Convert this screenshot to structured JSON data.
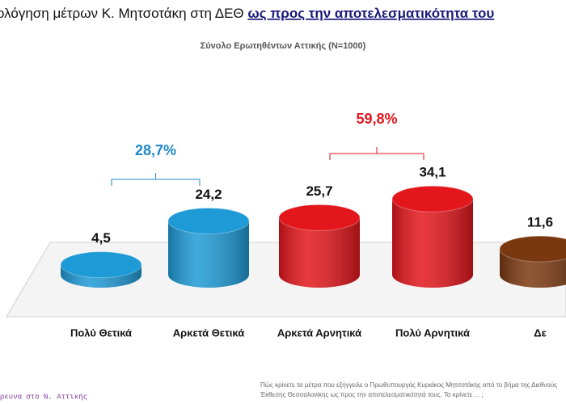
{
  "chart_data": {
    "type": "bar3d",
    "title": [
      "ολόγηση μέτρων Κ. Μητσοτάκη στη ΔΕΘ ",
      "ως προς την αποτελεσματικότητα του"
    ],
    "subtitle": "Σύνολο Ερωτηθέντων Αττικής (N=1000)",
    "categories": [
      "Πολύ Θετικά",
      "Αρκετά Θετικά",
      "Αρκετά Αρνητικά",
      "Πολύ Αρνητικά",
      "Δε"
    ],
    "values": [
      4.5,
      24.2,
      25.7,
      34.1,
      11.6
    ],
    "value_labels": [
      "4,5",
      "24,2",
      "25,7",
      "34,1",
      "11,6"
    ],
    "colors": [
      "#1e9ad6",
      "#1e9ad6",
      "#e3161b",
      "#e3161b",
      "#7a3810"
    ],
    "annotations": [
      {
        "text": "28,7%",
        "from": 0,
        "to": 1,
        "color": "#1e88c8"
      },
      {
        "text": "59,8%",
        "from": 2,
        "to": 3,
        "color": "#e3161b"
      }
    ],
    "footnote": [
      "Πώς κρίνετε τα μέτρα που εξήγγειλε ο Πρωθυπουργός Κυριάκος Μητσοτάκης από το βήμα της Διεθνούς",
      "Έκθεσης Θεσσαλονίκης ως προς την αποτελεσματικότητά τους. Τα κρίνετε ... ;"
    ],
    "source": "ρευνα στο Ν. Αττικής"
  }
}
